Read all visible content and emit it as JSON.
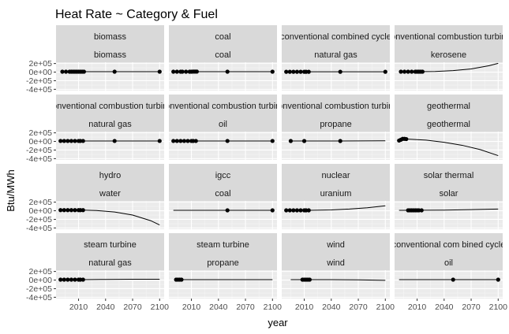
{
  "chart_data": {
    "type": "scatter",
    "title": "Heat Rate ~ Category & Fuel",
    "xlabel": "year",
    "ylabel": "Btu/MWh",
    "xlim": [
      1985,
      2105
    ],
    "ylim": [
      -430000,
      230000
    ],
    "x_ticks": [
      2010,
      2040,
      2070,
      2100
    ],
    "x_tick_labels": [
      "2010",
      "2040",
      "2070",
      "2100"
    ],
    "y_ticks": [
      -400000,
      -200000,
      0,
      200000
    ],
    "y_tick_labels": [
      "-4e+05",
      "-2e+05",
      "0e+00",
      "2e+05"
    ],
    "grid": true,
    "panel_background": "#ebebeb",
    "strip_background": "#d9d9d9",
    "point_color": "#000000",
    "line_color": "#000000",
    "panels": [
      {
        "category": "biomass",
        "fuel": "biomass",
        "points": [
          [
            1992,
            10000
          ],
          [
            1996,
            10000
          ],
          [
            2000,
            10000
          ],
          [
            2002,
            10000
          ],
          [
            2004,
            10000
          ],
          [
            2006,
            10000
          ],
          [
            2008,
            10000
          ],
          [
            2010,
            10000
          ],
          [
            2012,
            10000
          ],
          [
            2014,
            10000
          ],
          [
            2016,
            10000
          ],
          [
            2050,
            10000
          ],
          [
            2100,
            10000
          ]
        ],
        "curve": [
          [
            1990,
            10000
          ],
          [
            2100,
            10000
          ]
        ]
      },
      {
        "category": "coal",
        "fuel": "coal",
        "points": [
          [
            1990,
            10000
          ],
          [
            1994,
            10000
          ],
          [
            1998,
            10000
          ],
          [
            2000,
            10000
          ],
          [
            2004,
            10000
          ],
          [
            2008,
            10000
          ],
          [
            2010,
            10000
          ],
          [
            2012,
            12000
          ],
          [
            2014,
            12000
          ],
          [
            2016,
            12000
          ],
          [
            2050,
            10000
          ],
          [
            2100,
            10000
          ]
        ],
        "curve": [
          [
            1990,
            10000
          ],
          [
            2100,
            10000
          ]
        ]
      },
      {
        "category": "conventional combined cycle",
        "fuel": "natural gas",
        "points": [
          [
            1990,
            8000
          ],
          [
            1994,
            8000
          ],
          [
            1998,
            8000
          ],
          [
            2002,
            8000
          ],
          [
            2006,
            8000
          ],
          [
            2010,
            8000
          ],
          [
            2012,
            8000
          ],
          [
            2015,
            8000
          ],
          [
            2050,
            8000
          ],
          [
            2100,
            8000
          ]
        ],
        "curve": [
          [
            1990,
            8000
          ],
          [
            2100,
            8000
          ]
        ]
      },
      {
        "category": "conventional combustion turbine",
        "fuel": "kerosene",
        "points": [
          [
            1992,
            10000
          ],
          [
            1996,
            10000
          ],
          [
            2000,
            10000
          ],
          [
            2004,
            10000
          ],
          [
            2008,
            10000
          ],
          [
            2010,
            10000
          ],
          [
            2012,
            10000
          ],
          [
            2014,
            10000
          ],
          [
            2016,
            10000
          ]
        ],
        "curve": [
          [
            2010,
            10000
          ],
          [
            2030,
            15000
          ],
          [
            2050,
            35000
          ],
          [
            2070,
            75000
          ],
          [
            2090,
            150000
          ],
          [
            2100,
            205000
          ]
        ]
      },
      {
        "category": "conventional combustion turbine",
        "fuel": "natural gas",
        "points": [
          [
            1990,
            11000
          ],
          [
            1994,
            11000
          ],
          [
            1998,
            11000
          ],
          [
            2002,
            11000
          ],
          [
            2006,
            11000
          ],
          [
            2010,
            11000
          ],
          [
            2012,
            11000
          ],
          [
            2015,
            11000
          ],
          [
            2050,
            11000
          ],
          [
            2100,
            11000
          ]
        ],
        "curve": [
          [
            1990,
            11000
          ],
          [
            2100,
            11000
          ]
        ]
      },
      {
        "category": "conventional combustion turbine",
        "fuel": "oil",
        "points": [
          [
            1990,
            11000
          ],
          [
            1994,
            11000
          ],
          [
            1998,
            11000
          ],
          [
            2002,
            11000
          ],
          [
            2006,
            11000
          ],
          [
            2010,
            11000
          ],
          [
            2012,
            11000
          ],
          [
            2015,
            11000
          ],
          [
            2050,
            11000
          ],
          [
            2100,
            11000
          ]
        ],
        "curve": [
          [
            1990,
            11000
          ],
          [
            2100,
            11000
          ]
        ]
      },
      {
        "category": "conventional combustion turbine",
        "fuel": "propane",
        "points": [
          [
            1995,
            10000
          ],
          [
            2010,
            10000
          ],
          [
            2050,
            10000
          ]
        ],
        "curve": [
          [
            1995,
            10000
          ],
          [
            2050,
            10000
          ],
          [
            2075,
            12000
          ],
          [
            2100,
            15000
          ]
        ]
      },
      {
        "category": "geothermal",
        "fuel": "geothermal",
        "points": [
          [
            1990,
            20000
          ],
          [
            1992,
            40000
          ],
          [
            1994,
            60000
          ],
          [
            1996,
            60000
          ],
          [
            1998,
            55000
          ]
        ],
        "curve": [
          [
            1998,
            55000
          ],
          [
            2020,
            30000
          ],
          [
            2040,
            -20000
          ],
          [
            2060,
            -90000
          ],
          [
            2080,
            -190000
          ],
          [
            2100,
            -330000
          ]
        ]
      },
      {
        "category": "hydro",
        "fuel": "water",
        "points": [
          [
            1990,
            15000
          ],
          [
            1994,
            15000
          ],
          [
            1998,
            15000
          ],
          [
            2002,
            15000
          ],
          [
            2006,
            15000
          ],
          [
            2010,
            15000
          ],
          [
            2012,
            15000
          ],
          [
            2015,
            15000
          ]
        ],
        "curve": [
          [
            2015,
            15000
          ],
          [
            2030,
            5000
          ],
          [
            2050,
            -30000
          ],
          [
            2070,
            -100000
          ],
          [
            2090,
            -230000
          ],
          [
            2100,
            -330000
          ]
        ]
      },
      {
        "category": "igcc",
        "fuel": "coal",
        "points": [
          [
            2050,
            10000
          ],
          [
            2100,
            10000
          ]
        ],
        "curve": [
          [
            1990,
            10000
          ],
          [
            2100,
            10000
          ]
        ]
      },
      {
        "category": "nuclear",
        "fuel": "uranium",
        "points": [
          [
            1990,
            10000
          ],
          [
            1994,
            10000
          ],
          [
            1998,
            10000
          ],
          [
            2002,
            10000
          ],
          [
            2006,
            10000
          ],
          [
            2010,
            10000
          ],
          [
            2012,
            10000
          ],
          [
            2015,
            10000
          ]
        ],
        "curve": [
          [
            2015,
            10000
          ],
          [
            2040,
            20000
          ],
          [
            2060,
            40000
          ],
          [
            2080,
            70000
          ],
          [
            2100,
            115000
          ]
        ]
      },
      {
        "category": "solar thermal",
        "fuel": "solar",
        "points": [
          [
            2000,
            10000
          ],
          [
            2002,
            10000
          ],
          [
            2004,
            10000
          ],
          [
            2006,
            10000
          ],
          [
            2008,
            10000
          ],
          [
            2010,
            10000
          ],
          [
            2012,
            10000
          ],
          [
            2015,
            10000
          ]
        ],
        "curve": [
          [
            1990,
            10000
          ],
          [
            2040,
            15000
          ],
          [
            2070,
            25000
          ],
          [
            2100,
            40000
          ]
        ]
      },
      {
        "category": "steam turbine",
        "fuel": "natural gas",
        "points": [
          [
            1990,
            10000
          ],
          [
            1994,
            10000
          ],
          [
            1998,
            10000
          ],
          [
            2002,
            10000
          ],
          [
            2006,
            10000
          ],
          [
            2010,
            10000
          ],
          [
            2012,
            10000
          ],
          [
            2015,
            10000
          ]
        ],
        "curve": [
          [
            2015,
            10000
          ],
          [
            2040,
            15000
          ],
          [
            2070,
            20000
          ],
          [
            2100,
            20000
          ]
        ]
      },
      {
        "category": "steam turbine",
        "fuel": "propane",
        "points": [
          [
            1993,
            10000
          ],
          [
            1995,
            10000
          ],
          [
            1997,
            10000
          ],
          [
            1999,
            10000
          ]
        ],
        "curve": [
          [
            1993,
            10000
          ],
          [
            2100,
            10000
          ]
        ]
      },
      {
        "category": "wind",
        "fuel": "wind",
        "points": [
          [
            2008,
            10000
          ],
          [
            2010,
            10000
          ],
          [
            2012,
            10000
          ],
          [
            2014,
            10000
          ],
          [
            2016,
            10000
          ]
        ],
        "curve": [
          [
            1995,
            10000
          ],
          [
            2040,
            10000
          ],
          [
            2070,
            5000
          ],
          [
            2100,
            -5000
          ]
        ]
      },
      {
        "category": "conventional com bined cycle",
        "fuel": "oil",
        "points": [
          [
            2050,
            10000
          ],
          [
            2100,
            10000
          ]
        ],
        "curve": [
          [
            1990,
            10000
          ],
          [
            2100,
            10000
          ]
        ]
      }
    ]
  }
}
